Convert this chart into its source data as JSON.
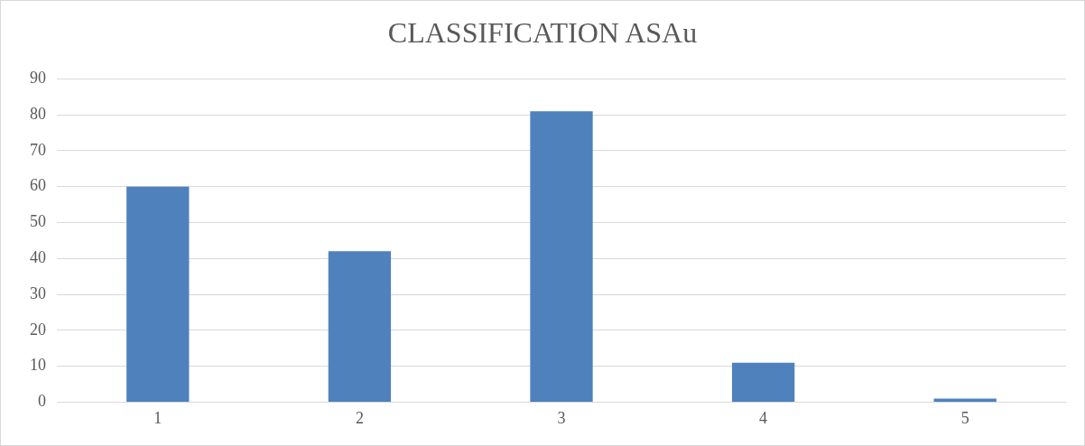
{
  "chart_data": {
    "type": "bar",
    "title": "CLASSIFICATION ASAu",
    "categories": [
      "1",
      "2",
      "3",
      "4",
      "5"
    ],
    "values": [
      60,
      42,
      81,
      11,
      1
    ],
    "color": "#4f81bd",
    "ylim": [
      0,
      90
    ],
    "yticks": [
      0,
      10,
      20,
      30,
      40,
      50,
      60,
      70,
      80,
      90
    ],
    "grid": "y"
  }
}
